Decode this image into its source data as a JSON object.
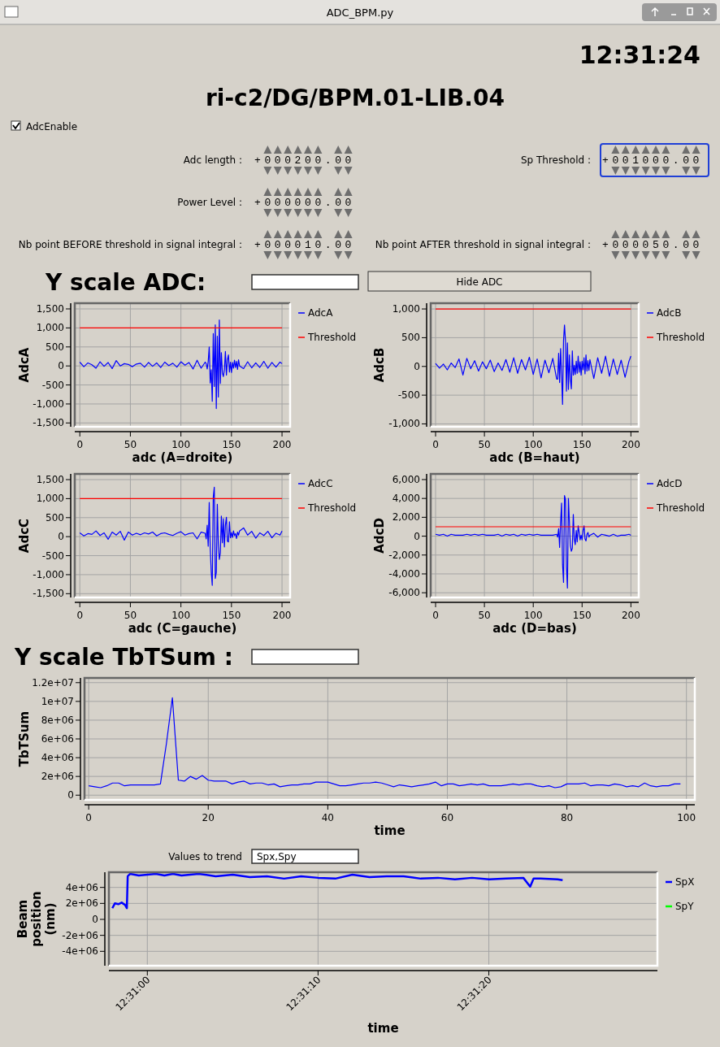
{
  "chart_data": [
    {
      "type": "other",
      "title": "ri-c2/DG/BPM.01-LIB.04",
      "annotations": [
        "ADC_BPM.py",
        "12:31:24",
        "AdcEnable",
        "Adc length :",
        "+000200.00",
        "Sp Threshold :",
        "+001000.00",
        "Power Level :",
        "+000000.00",
        "Nb point BEFORE threshold in signal integral :",
        "+000010.00",
        "Nb point AFTER threshold in signal integral :",
        "+000050.00",
        "Y scale ADC:",
        "Hide ADC"
      ]
    },
    {
      "type": "line",
      "xlabel": "adc  (A=droite)",
      "ylabel": "AdcA",
      "grid": true,
      "legend": "right",
      "xlim": [
        -5,
        208
      ],
      "ylim": [
        -1600,
        1650
      ],
      "xticks": [
        0,
        50,
        100,
        150,
        200
      ],
      "yticks": [
        {
          "value": -1500,
          "label": "-1,500"
        },
        {
          "value": -1000,
          "label": "-1,000"
        },
        -500,
        0,
        500,
        {
          "value": 1000,
          "label": "1,000"
        },
        {
          "value": 1500,
          "label": "1,500"
        }
      ],
      "x": [
        0,
        4,
        8,
        12,
        16,
        20,
        24,
        28,
        32,
        36,
        40,
        44,
        48,
        52,
        56,
        60,
        64,
        68,
        72,
        76,
        80,
        84,
        88,
        92,
        96,
        100,
        104,
        108,
        112,
        116,
        120,
        124,
        125,
        126,
        127,
        128,
        129,
        130,
        131,
        132,
        133,
        134,
        135,
        136,
        137,
        138,
        139,
        140,
        141,
        142,
        143,
        144,
        145,
        146,
        147,
        148,
        149,
        150,
        151,
        152,
        153,
        154,
        155,
        156,
        157,
        158,
        162,
        166,
        170,
        174,
        178,
        182,
        186,
        190,
        194,
        198,
        200
      ],
      "series": [
        {
          "name": "AdcA",
          "color": "#0000ff",
          "values": [
            100,
            -20,
            80,
            30,
            -60,
            110,
            -10,
            90,
            -70,
            140,
            0,
            60,
            40,
            -20,
            50,
            70,
            -30,
            90,
            -10,
            80,
            -40,
            100,
            10,
            70,
            -30,
            110,
            20,
            90,
            -80,
            150,
            -60,
            100,
            60,
            -80,
            120,
            500,
            -450,
            -100,
            -930,
            850,
            -540,
            1080,
            -1120,
            780,
            -820,
            1210,
            -460,
            350,
            -180,
            -280,
            -100,
            380,
            -240,
            160,
            290,
            -160,
            100,
            -170,
            90,
            -60,
            150,
            -40,
            120,
            -90,
            160,
            0,
            -70,
            110,
            -50,
            80,
            -40,
            120,
            -60,
            90,
            -30,
            100,
            60
          ]
        },
        {
          "name": "Threshold",
          "color": "#ff0000",
          "x": [
            0,
            200
          ],
          "values": [
            1000,
            1000
          ]
        }
      ]
    },
    {
      "type": "line",
      "xlabel": "adc  (B=haut)",
      "ylabel": "AdcB",
      "grid": true,
      "legend": "right",
      "xlim": [
        -5,
        208
      ],
      "ylim": [
        -1050,
        1100
      ],
      "xticks": [
        0,
        50,
        100,
        150,
        200
      ],
      "yticks": [
        {
          "value": -1000,
          "label": "-1,000"
        },
        -500,
        0,
        500,
        {
          "value": 1000,
          "label": "1,000"
        }
      ],
      "x": [
        0,
        4,
        8,
        12,
        16,
        20,
        24,
        28,
        32,
        36,
        40,
        44,
        48,
        52,
        56,
        60,
        64,
        68,
        72,
        76,
        80,
        84,
        88,
        92,
        96,
        100,
        104,
        108,
        112,
        116,
        120,
        124,
        125,
        126,
        127,
        128,
        129,
        130,
        131,
        132,
        133,
        134,
        135,
        136,
        137,
        138,
        139,
        140,
        141,
        142,
        143,
        144,
        145,
        146,
        147,
        148,
        149,
        150,
        151,
        152,
        153,
        154,
        155,
        156,
        157,
        158,
        162,
        166,
        170,
        174,
        178,
        182,
        186,
        190,
        194,
        198,
        200
      ],
      "series": [
        {
          "name": "AdcB",
          "color": "#0000ff",
          "values": [
            50,
            -30,
            40,
            -60,
            60,
            -20,
            130,
            -150,
            140,
            -40,
            100,
            -80,
            80,
            -40,
            110,
            -90,
            60,
            -70,
            120,
            -100,
            150,
            -120,
            120,
            -60,
            160,
            -140,
            130,
            -200,
            110,
            -110,
            140,
            -220,
            -220,
            230,
            -280,
            310,
            -150,
            -660,
            450,
            720,
            440,
            -430,
            410,
            -400,
            200,
            -220,
            -390,
            270,
            -150,
            20,
            -140,
            90,
            -120,
            180,
            -100,
            80,
            -150,
            90,
            -60,
            150,
            -130,
            200,
            -80,
            100,
            -70,
            120,
            -210,
            150,
            -120,
            180,
            -170,
            130,
            -140,
            110,
            -190,
            90,
            180
          ]
        },
        {
          "name": "Threshold",
          "color": "#ff0000",
          "x": [
            0,
            200
          ],
          "values": [
            1000,
            1000
          ]
        }
      ]
    },
    {
      "type": "line",
      "xlabel": "adc  (C=gauche)",
      "ylabel": "AdcC",
      "grid": true,
      "legend": "right",
      "xlim": [
        -5,
        208
      ],
      "ylim": [
        -1600,
        1650
      ],
      "xticks": [
        0,
        50,
        100,
        150,
        200
      ],
      "yticks": [
        {
          "value": -1500,
          "label": "-1,500"
        },
        {
          "value": -1000,
          "label": "-1,000"
        },
        -500,
        0,
        500,
        {
          "value": 1000,
          "label": "1,000"
        },
        {
          "value": 1500,
          "label": "1,500"
        }
      ],
      "x": [
        0,
        4,
        8,
        12,
        16,
        20,
        24,
        28,
        32,
        36,
        40,
        44,
        48,
        52,
        56,
        60,
        64,
        68,
        72,
        76,
        80,
        84,
        88,
        92,
        96,
        100,
        104,
        108,
        112,
        116,
        120,
        124,
        125,
        126,
        127,
        128,
        129,
        130,
        131,
        132,
        133,
        134,
        135,
        136,
        137,
        138,
        139,
        140,
        141,
        142,
        143,
        144,
        145,
        146,
        147,
        148,
        149,
        150,
        151,
        152,
        153,
        154,
        155,
        156,
        157,
        158,
        162,
        166,
        170,
        174,
        178,
        182,
        186,
        190,
        194,
        198,
        200
      ],
      "series": [
        {
          "name": "AdcC",
          "color": "#0000ff",
          "values": [
            100,
            20,
            80,
            60,
            150,
            30,
            100,
            -70,
            120,
            40,
            140,
            -90,
            120,
            40,
            90,
            50,
            100,
            70,
            120,
            20,
            80,
            100,
            60,
            30,
            90,
            130,
            40,
            80,
            100,
            -60,
            120,
            90,
            -60,
            300,
            -250,
            900,
            -300,
            -940,
            -1280,
            1040,
            1300,
            -1100,
            -940,
            850,
            -190,
            -600,
            -420,
            540,
            -160,
            470,
            -270,
            300,
            510,
            -120,
            -140,
            390,
            -30,
            110,
            -20,
            150,
            30,
            80,
            -50,
            120,
            40,
            150,
            230,
            40,
            140,
            -40,
            100,
            30,
            140,
            -30,
            90,
            40,
            150
          ]
        },
        {
          "name": "Threshold",
          "color": "#ff0000",
          "x": [
            0,
            200
          ],
          "values": [
            1000,
            1000
          ]
        }
      ]
    },
    {
      "type": "line",
      "xlabel": "adc  (D=bas)",
      "ylabel": "AdcD",
      "grid": true,
      "legend": "right",
      "xlim": [
        -5,
        208
      ],
      "ylim": [
        -6500,
        6600
      ],
      "xticks": [
        0,
        50,
        100,
        150,
        200
      ],
      "yticks": [
        {
          "value": -6000,
          "label": "-6,000"
        },
        {
          "value": -4000,
          "label": "-4,000"
        },
        {
          "value": -2000,
          "label": "-2,000"
        },
        0,
        {
          "value": 2000,
          "label": "2,000"
        },
        {
          "value": 4000,
          "label": "4,000"
        },
        {
          "value": 6000,
          "label": "6,000"
        }
      ],
      "x": [
        0,
        4,
        8,
        12,
        16,
        20,
        24,
        28,
        32,
        36,
        40,
        44,
        48,
        52,
        56,
        60,
        64,
        68,
        72,
        76,
        80,
        84,
        88,
        92,
        96,
        100,
        104,
        108,
        112,
        116,
        120,
        124,
        125,
        126,
        127,
        128,
        129,
        130,
        131,
        132,
        133,
        134,
        135,
        136,
        137,
        138,
        139,
        140,
        141,
        142,
        143,
        144,
        145,
        146,
        147,
        148,
        149,
        150,
        151,
        152,
        153,
        154,
        155,
        156,
        157,
        158,
        162,
        166,
        170,
        174,
        178,
        182,
        186,
        190,
        194,
        198,
        200
      ],
      "series": [
        {
          "name": "AdcD",
          "color": "#0000ff",
          "values": [
            200,
            100,
            200,
            0,
            200,
            100,
            100,
            100,
            200,
            100,
            200,
            100,
            200,
            100,
            100,
            100,
            200,
            0,
            200,
            100,
            200,
            0,
            200,
            100,
            200,
            100,
            200,
            100,
            100,
            100,
            100,
            200,
            -100,
            800,
            -1200,
            1500,
            3500,
            -3000,
            -4900,
            4300,
            3900,
            -3200,
            -5500,
            4000,
            1500,
            -1000,
            -1600,
            -1300,
            2300,
            -300,
            -900,
            600,
            -600,
            1100,
            400,
            -400,
            100,
            -400,
            600,
            1100,
            -300,
            -500,
            200,
            400,
            -100,
            100,
            300,
            -100,
            200,
            100,
            0,
            200,
            0,
            100,
            100,
            200,
            100
          ]
        },
        {
          "name": "Threshold",
          "color": "#ff0000",
          "x": [
            0,
            200
          ],
          "values": [
            1000,
            1000
          ]
        }
      ]
    },
    {
      "type": "other",
      "annotations": [
        "Y scale TbTSum :"
      ]
    },
    {
      "type": "line",
      "xlabel": "time",
      "ylabel": "TbTSum",
      "grid": true,
      "xlim": [
        -0.7,
        101.4
      ],
      "ylim": [
        -500000,
        12500000
      ],
      "xticks": [
        0,
        20,
        40,
        60,
        80,
        100
      ],
      "yticks": [
        {
          "value": 0,
          "label": "0"
        },
        {
          "value": 2000000,
          "label": "2e+06"
        },
        {
          "value": 4000000,
          "label": "4e+06"
        },
        {
          "value": 6000000,
          "label": "6e+06"
        },
        {
          "value": 8000000,
          "label": "8e+06"
        },
        {
          "value": 10000000,
          "label": "1e+07"
        },
        {
          "value": 12000000,
          "label": "1.2e+07"
        }
      ],
      "x": [
        0,
        1,
        2,
        3,
        4,
        5,
        6,
        7,
        8,
        9,
        10,
        11,
        12,
        13,
        14,
        15,
        16,
        17,
        18,
        19,
        20,
        21,
        22,
        23,
        24,
        25,
        26,
        27,
        28,
        29,
        30,
        31,
        32,
        33,
        34,
        35,
        36,
        37,
        38,
        39,
        40,
        41,
        42,
        43,
        44,
        45,
        46,
        47,
        48,
        49,
        50,
        51,
        52,
        53,
        54,
        55,
        56,
        57,
        58,
        59,
        60,
        61,
        62,
        63,
        64,
        65,
        66,
        67,
        68,
        69,
        70,
        71,
        72,
        73,
        74,
        75,
        76,
        77,
        78,
        79,
        80,
        81,
        82,
        83,
        84,
        85,
        86,
        87,
        88,
        89,
        90,
        91,
        92,
        93,
        94,
        95,
        96,
        97,
        98,
        99
      ],
      "series": [
        {
          "color": "#0000ff",
          "values": [
            1000000,
            900000,
            800000,
            1000000,
            1300000,
            1300000,
            1000000,
            1100000,
            1100000,
            1100000,
            1100000,
            1100000,
            1200000,
            5500000,
            10400000,
            1600000,
            1500000,
            2000000,
            1700000,
            2100000,
            1600000,
            1500000,
            1500000,
            1500000,
            1200000,
            1400000,
            1500000,
            1200000,
            1300000,
            1300000,
            1100000,
            1200000,
            900000,
            1000000,
            1100000,
            1100000,
            1200000,
            1200000,
            1400000,
            1400000,
            1400000,
            1200000,
            1000000,
            1000000,
            1100000,
            1200000,
            1300000,
            1300000,
            1400000,
            1300000,
            1100000,
            900000,
            1100000,
            1000000,
            900000,
            1000000,
            1100000,
            1200000,
            1400000,
            1000000,
            1200000,
            1200000,
            1000000,
            1100000,
            1200000,
            1100000,
            1200000,
            1000000,
            1000000,
            1000000,
            1100000,
            1200000,
            1100000,
            1200000,
            1200000,
            1000000,
            900000,
            1000000,
            800000,
            900000,
            1200000,
            1200000,
            1200000,
            1300000,
            1000000,
            1100000,
            1100000,
            1000000,
            1200000,
            1100000,
            900000,
            1000000,
            900000,
            1300000,
            1000000,
            900000,
            1000000,
            1000000,
            1200000,
            1200000
          ]
        }
      ]
    },
    {
      "type": "other",
      "annotations": [
        "Values to trend",
        "Spx,Spy"
      ]
    },
    {
      "type": "line",
      "xlabel": "time",
      "ylabel": "Beam position (nm)",
      "grid": true,
      "legend": "right",
      "xlim": [
        12.516042,
        12.524964
      ],
      "ylim": [
        -5800000,
        5900000
      ],
      "xticks": [
        {
          "value": 12.516667,
          "label": "12:31:00"
        },
        {
          "value": 12.519444,
          "label": "12:31:10"
        },
        {
          "value": 12.522222,
          "label": "12:31:20"
        }
      ],
      "yticks": [
        {
          "value": -4000000,
          "label": "-4e+06"
        },
        {
          "value": -2000000,
          "label": "-2e+06"
        },
        {
          "value": 0,
          "label": "0"
        },
        {
          "value": 2000000,
          "label": "2e+06"
        },
        {
          "value": 4000000,
          "label": "4e+06"
        }
      ],
      "series": [
        {
          "name": "SpX",
          "color": "#0000ff",
          "x": [
            12.516098,
            12.516139,
            12.516195,
            12.51625,
            12.516306,
            12.516334,
            12.516348,
            12.516389,
            12.516528,
            12.516667,
            12.516806,
            12.516945,
            12.517084,
            12.517223,
            12.517501,
            12.517779,
            12.518057,
            12.518335,
            12.518613,
            12.518891,
            12.519169,
            12.519447,
            12.519725,
            12.520003,
            12.520281,
            12.520559,
            12.520837,
            12.521115,
            12.521393,
            12.521671,
            12.521949,
            12.522227,
            12.522505,
            12.522783,
            12.522894,
            12.52295,
            12.523061,
            12.523339,
            12.523422
          ],
          "values": [
            1400000,
            2000000,
            1900000,
            2100000,
            1800000,
            1400000,
            5400000,
            5700000,
            5500000,
            5600000,
            5700000,
            5500000,
            5700000,
            5500000,
            5700000,
            5400000,
            5600000,
            5300000,
            5400000,
            5100000,
            5400000,
            5200000,
            5100000,
            5600000,
            5300000,
            5400000,
            5400000,
            5100000,
            5200000,
            5000000,
            5200000,
            5000000,
            5100000,
            5200000,
            4100000,
            5100000,
            5100000,
            5000000,
            4900000
          ]
        },
        {
          "name": "SpY",
          "color": "#00ff00"
        }
      ]
    }
  ]
}
